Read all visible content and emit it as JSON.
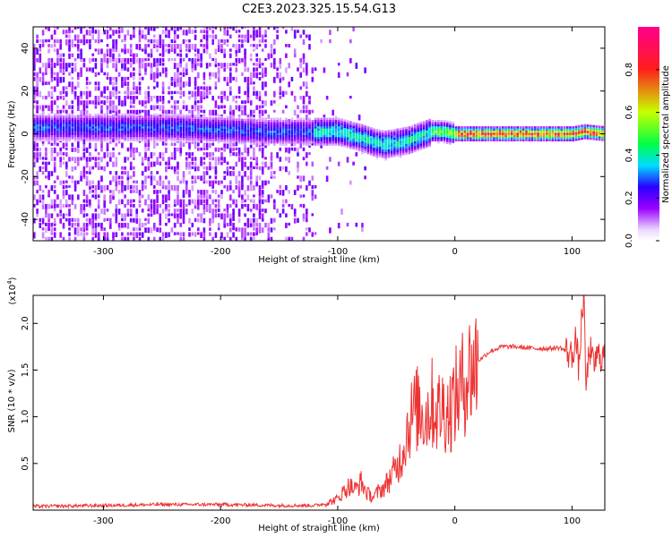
{
  "figure_title": "C2E3.2023.325.15.54.G13",
  "chart_data": [
    {
      "type": "heatmap",
      "title": "",
      "xlabel": "Height of straight line (km)",
      "ylabel": "Frequency (Hz)",
      "xlim": [
        -360,
        128
      ],
      "ylim": [
        -50,
        50
      ],
      "xticks": [
        -300,
        -200,
        -100,
        0,
        100
      ],
      "yticks": [
        -40,
        -20,
        0,
        20,
        40
      ],
      "colorbar": {
        "label": "Normalized spectral amplitude",
        "range": [
          0.0,
          1.0
        ],
        "ticks": [
          0.0,
          0.2,
          0.4,
          0.6,
          0.8
        ],
        "colormap": [
          "#f2e6ff",
          "#9b00ff",
          "#1a00ff",
          "#00e5ff",
          "#00ff44",
          "#c8ff00",
          "#ff1e1e",
          "#ff0088"
        ]
      },
      "ridge_frequency_hz": {
        "x": [
          -360,
          -300,
          -250,
          -200,
          -160,
          -120,
          -100,
          -80,
          -70,
          -60,
          -50,
          -40,
          -30,
          -20,
          -10,
          0,
          50,
          100,
          110,
          128
        ],
        "y": [
          3,
          3,
          3,
          2,
          1,
          1,
          1,
          -2,
          -4,
          -5,
          -4,
          -3,
          -1,
          1,
          1,
          0,
          0,
          0,
          1,
          0
        ]
      }
    },
    {
      "type": "line",
      "title": "",
      "xlabel": "Height of straight line (km)",
      "ylabel": "SNR (10 * v/v)",
      "exponent_label": "(x10",
      "exponent_power": "4",
      "exponent_close": ")",
      "xlim": [
        -360,
        128
      ],
      "ylim": [
        0,
        23000
      ],
      "xticks": [
        -300,
        -200,
        -100,
        0,
        100
      ],
      "yticks": [
        0.5,
        1.0,
        1.5,
        2.0
      ],
      "ytick_labels": [
        "0.5",
        "1.0",
        "1.5",
        "2.0"
      ],
      "series": [
        {
          "color": "#ee3333",
          "x": [
            -360,
            -300,
            -250,
            -200,
            -150,
            -120,
            -110,
            -100,
            -95,
            -90,
            -85,
            -80,
            -75,
            -70,
            -65,
            -60,
            -55,
            -50,
            -45,
            -40,
            -35,
            -30,
            -25,
            -20,
            -15,
            -10,
            -5,
            0,
            5,
            10,
            20,
            30,
            40,
            50,
            60,
            70,
            80,
            90,
            95,
            100,
            103,
            106,
            108,
            110,
            112,
            115,
            118,
            122,
            128
          ],
          "y": [
            400,
            500,
            600,
            600,
            500,
            500,
            700,
            1200,
            2000,
            2600,
            2200,
            3000,
            1800,
            1400,
            2000,
            2500,
            3500,
            4500,
            6000,
            9000,
            10500,
            11000,
            10000,
            11500,
            10500,
            11000,
            10500,
            12000,
            13000,
            14500,
            16000,
            17000,
            17500,
            17500,
            17400,
            17300,
            17300,
            17400,
            17000,
            16500,
            18500,
            15000,
            20000,
            23000,
            13000,
            17500,
            15500,
            16500,
            16500
          ]
        }
      ]
    }
  ]
}
